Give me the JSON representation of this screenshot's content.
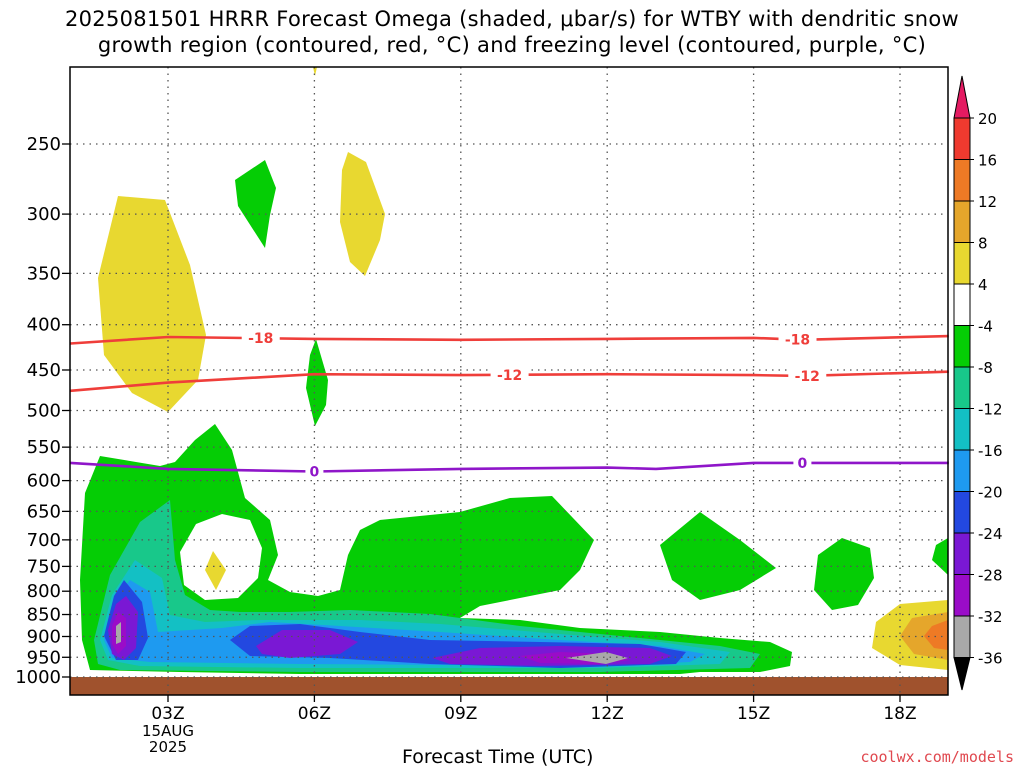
{
  "title_line1": "2025081501 HRRR Forecast Omega (shaded, μbar/s) for WTBY with dendritic snow",
  "title_line2": "growth region (contoured, red, °C) and freezing level (contoured, purple, °C)",
  "credit": "coolwx.com/models",
  "chart_data": {
    "type": "heatmap",
    "title": "2025081501 HRRR Forecast Omega (shaded, μbar/s) for WTBY with dendritic snow growth region (contoured, red, °C) and freezing level (contoured, purple, °C)",
    "xlabel": "Forecast Time (UTC)",
    "ylabel": "",
    "y_scale": "log",
    "ylim": [
      1040,
      200
    ],
    "x_ticks": [
      "03Z",
      "06Z",
      "09Z",
      "12Z",
      "15Z",
      "18Z"
    ],
    "x_tick_date": [
      "15AUG",
      "2025"
    ],
    "y_ticks": [
      250,
      300,
      350,
      400,
      450,
      500,
      550,
      600,
      650,
      700,
      750,
      800,
      850,
      900,
      950,
      1000
    ],
    "grid": true,
    "colorbar": {
      "labels": [
        "20",
        "16",
        "12",
        "8",
        "4",
        "-4",
        "-8",
        "-12",
        "-16",
        "-20",
        "-24",
        "-28",
        "-32",
        "-36"
      ],
      "colors": [
        "#e41b62",
        "#ef3a2f",
        "#ee7a25",
        "#e5a62b",
        "#e8d830",
        "#ffffff",
        "#05cd05",
        "#18c88a",
        "#13c0c4",
        "#1e9af0",
        "#2348e0",
        "#7a18d4",
        "#9a0cc8",
        "#a9a9a9",
        "#000000"
      ]
    },
    "contours": [
      {
        "name": "-18",
        "color": "#ef3e3a",
        "points": [
          [
            1.0,
            420
          ],
          [
            3.0,
            413
          ],
          [
            6.0,
            415
          ],
          [
            9.0,
            416
          ],
          [
            12.0,
            415
          ],
          [
            15.0,
            414
          ],
          [
            16.0,
            416
          ],
          [
            19.0,
            412
          ]
        ],
        "labels": [
          [
            4.9,
            "-18"
          ],
          [
            15.9,
            "-18"
          ]
        ]
      },
      {
        "name": "-12",
        "color": "#ef3e3a",
        "points": [
          [
            1.0,
            475
          ],
          [
            3.0,
            465
          ],
          [
            6.0,
            455
          ],
          [
            9.0,
            456
          ],
          [
            12.0,
            455
          ],
          [
            15.0,
            456
          ],
          [
            16.0,
            457
          ],
          [
            19.0,
            452
          ]
        ],
        "labels": [
          [
            10.0,
            "-12"
          ],
          [
            16.1,
            "-12"
          ]
        ]
      },
      {
        "name": "0",
        "color": "#8f16c9",
        "points": [
          [
            1.0,
            573
          ],
          [
            3.0,
            582
          ],
          [
            6.0,
            586
          ],
          [
            9.0,
            582
          ],
          [
            12.0,
            580
          ],
          [
            13.0,
            582
          ],
          [
            15.0,
            573
          ],
          [
            17.0,
            573
          ],
          [
            19.0,
            573
          ]
        ],
        "labels": [
          [
            6.0,
            "0"
          ],
          [
            16.0,
            "0"
          ]
        ]
      }
    ]
  }
}
